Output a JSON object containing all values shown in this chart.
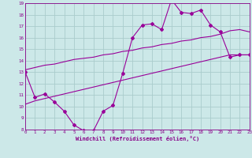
{
  "x_values": [
    0,
    1,
    2,
    3,
    4,
    5,
    6,
    7,
    8,
    9,
    10,
    11,
    12,
    13,
    14,
    15,
    16,
    17,
    18,
    19,
    20,
    21,
    22,
    23
  ],
  "main_line": [
    13.0,
    10.8,
    11.1,
    10.4,
    9.6,
    8.4,
    7.9,
    7.9,
    9.6,
    10.1,
    12.9,
    16.0,
    17.1,
    17.2,
    16.7,
    19.3,
    18.2,
    18.1,
    18.4,
    17.1,
    16.5,
    14.3,
    14.5,
    14.5
  ],
  "trend_upper": [
    13.2,
    13.4,
    13.6,
    13.7,
    13.9,
    14.1,
    14.2,
    14.3,
    14.5,
    14.6,
    14.8,
    14.9,
    15.1,
    15.2,
    15.4,
    15.5,
    15.7,
    15.8,
    16.0,
    16.1,
    16.3,
    16.6,
    16.7,
    16.5
  ],
  "trend_lower": [
    10.2,
    10.5,
    10.7,
    10.9,
    11.1,
    11.3,
    11.5,
    11.7,
    11.9,
    12.1,
    12.3,
    12.5,
    12.7,
    12.9,
    13.1,
    13.3,
    13.5,
    13.7,
    13.9,
    14.1,
    14.3,
    14.5,
    14.5,
    14.5
  ],
  "line_color": "#990099",
  "bg_color": "#cce8e8",
  "grid_color": "#aacccc",
  "text_color": "#880088",
  "xlabel": "Windchill (Refroidissement éolien,°C)",
  "xlim": [
    0,
    23
  ],
  "ylim": [
    8,
    19
  ],
  "yticks": [
    8,
    9,
    10,
    11,
    12,
    13,
    14,
    15,
    16,
    17,
    18,
    19
  ],
  "xticks": [
    0,
    1,
    2,
    3,
    4,
    5,
    6,
    7,
    8,
    9,
    10,
    11,
    12,
    13,
    14,
    15,
    16,
    17,
    18,
    19,
    20,
    21,
    22,
    23
  ]
}
